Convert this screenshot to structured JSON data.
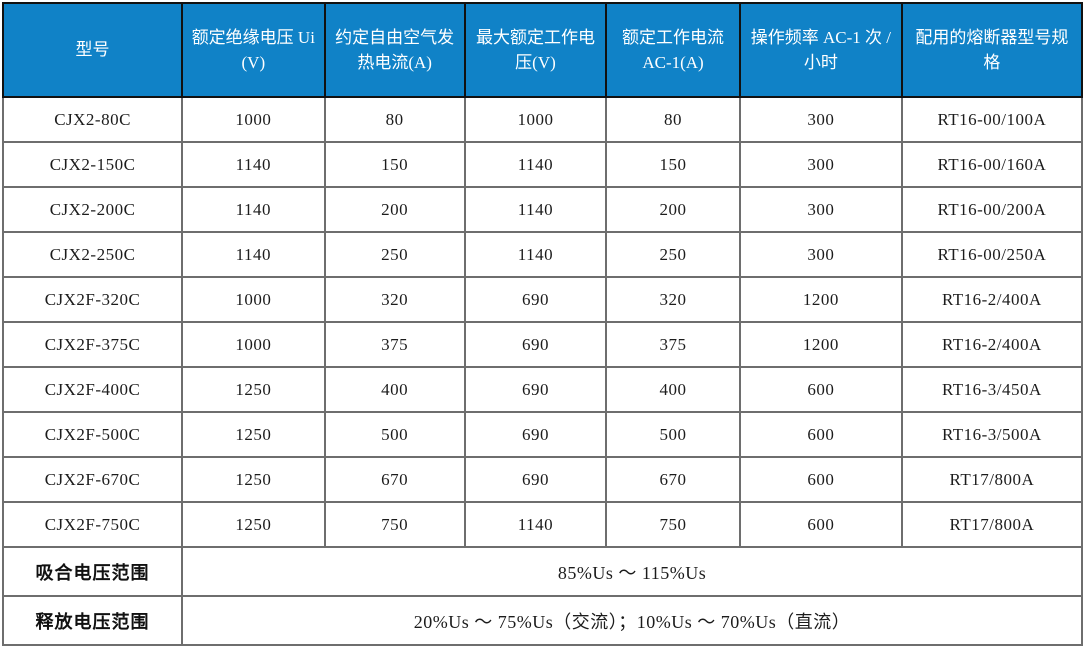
{
  "table": {
    "title_semantic": "contactor-specifications",
    "headers": [
      "型号",
      "额定绝缘电压 Ui(V)",
      "约定自由空气发热电流(A)",
      "最大额定工作电压(V)",
      "额定工作电流 AC-1(A)",
      "操作频率 AC-1 次 / 小时",
      "配用的熔断器型号规格"
    ],
    "rows": [
      [
        "CJX2-80C",
        "1000",
        "80",
        "1000",
        "80",
        "300",
        "RT16-00/100A"
      ],
      [
        "CJX2-150C",
        "1140",
        "150",
        "1140",
        "150",
        "300",
        "RT16-00/160A"
      ],
      [
        "CJX2-200C",
        "1140",
        "200",
        "1140",
        "200",
        "300",
        "RT16-00/200A"
      ],
      [
        "CJX2-250C",
        "1140",
        "250",
        "1140",
        "250",
        "300",
        "RT16-00/250A"
      ],
      [
        "CJX2F-320C",
        "1000",
        "320",
        "690",
        "320",
        "1200",
        "RT16-2/400A"
      ],
      [
        "CJX2F-375C",
        "1000",
        "375",
        "690",
        "375",
        "1200",
        "RT16-2/400A"
      ],
      [
        "CJX2F-400C",
        "1250",
        "400",
        "690",
        "400",
        "600",
        "RT16-3/450A"
      ],
      [
        "CJX2F-500C",
        "1250",
        "500",
        "690",
        "500",
        "600",
        "RT16-3/500A"
      ],
      [
        "CJX2F-670C",
        "1250",
        "670",
        "690",
        "670",
        "600",
        "RT17/800A"
      ],
      [
        "CJX2F-750C",
        "1250",
        "750",
        "1140",
        "750",
        "600",
        "RT17/800A"
      ]
    ],
    "footer_rows": [
      {
        "label": "吸合电压范围",
        "value": "85%Us ～ 115%Us"
      },
      {
        "label": "释放电压范围",
        "value": "20%Us ～ 75%Us（交流）；10%Us ～ 70%Us（直流）"
      }
    ]
  },
  "colors": {
    "header_background": "#1082c7",
    "header_text": "#ffffff",
    "body_text": "#1c1c1c",
    "grid_line": "#6e6e6e",
    "outer_border": "#2b2b2b"
  }
}
